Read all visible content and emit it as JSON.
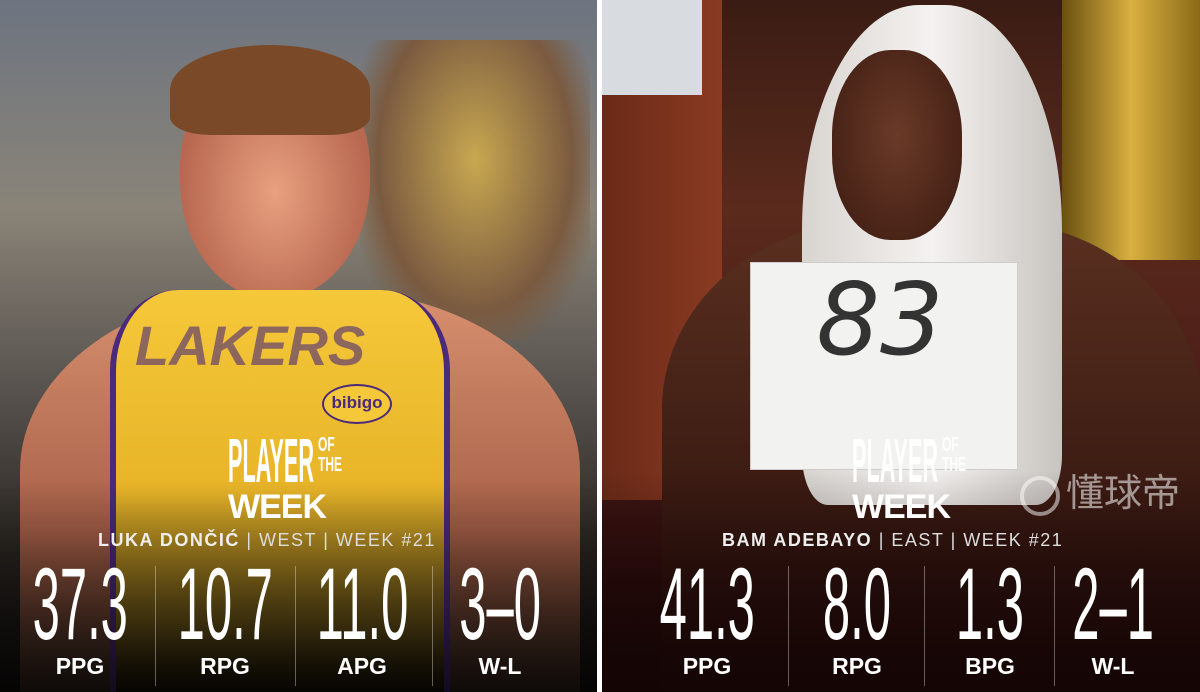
{
  "left": {
    "badge": {
      "line1": "PLAYER",
      "of": "OF",
      "the": "THE",
      "line2": "WEEK"
    },
    "player": "LUKA DONČIĆ",
    "conference": "WEST",
    "week": "WEEK #21",
    "jersey_text": "LAKERS",
    "sponsor": "bibigo",
    "stats": [
      {
        "value": "37.3",
        "label": "PPG"
      },
      {
        "value": "10.7",
        "label": "RPG"
      },
      {
        "value": "11.0",
        "label": "APG"
      },
      {
        "value": "3–0",
        "label": "W-L"
      }
    ],
    "accent": "#f5c83a"
  },
  "right": {
    "badge": {
      "line1": "PLAYER",
      "of": "OF",
      "the": "THE",
      "line2": "WEEK"
    },
    "player": "BAM ADEBAYO",
    "conference": "EAST",
    "week": "WEEK #21",
    "sign_text": "83",
    "stats": [
      {
        "value": "41.3",
        "label": "PPG"
      },
      {
        "value": "8.0",
        "label": "RPG"
      },
      {
        "value": "1.3",
        "label": "BPG"
      },
      {
        "value": "2–1",
        "label": "W-L"
      }
    ],
    "accent": "#8a1a1a"
  },
  "watermark": "懂球帝"
}
